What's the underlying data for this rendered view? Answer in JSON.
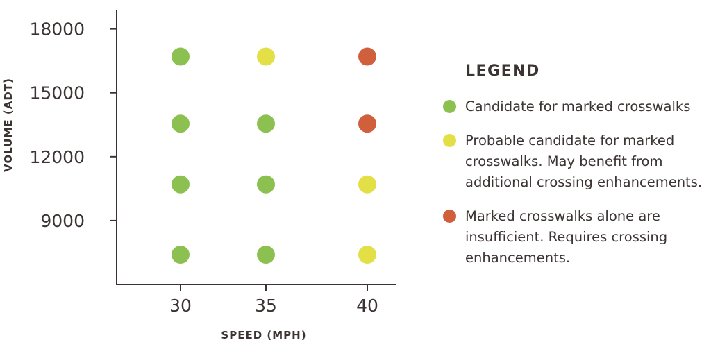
{
  "chart_data": {
    "type": "scatter",
    "xlabel": "SPEED (MPH)",
    "ylabel": "VOLUME (ADT)",
    "x_ticks": [
      "30",
      "35",
      "40"
    ],
    "y_ticks": [
      "18000",
      "15000",
      "12000",
      "9000"
    ],
    "y_tick_values": [
      18000,
      15000,
      12000,
      9000
    ],
    "ylim": [
      6000,
      18900
    ],
    "grid": false,
    "legend_position": "right",
    "colors": {
      "green": "#8cc152",
      "yellow": "#e3df47",
      "red": "#d05f3b"
    },
    "points": [
      {
        "x": 30,
        "y": 16700,
        "category": "green"
      },
      {
        "x": 35,
        "y": 16700,
        "category": "yellow"
      },
      {
        "x": 40,
        "y": 16700,
        "category": "red"
      },
      {
        "x": 30,
        "y": 13550,
        "category": "green"
      },
      {
        "x": 35,
        "y": 13550,
        "category": "green"
      },
      {
        "x": 40,
        "y": 13550,
        "category": "red"
      },
      {
        "x": 30,
        "y": 10700,
        "category": "green"
      },
      {
        "x": 35,
        "y": 10700,
        "category": "green"
      },
      {
        "x": 40,
        "y": 10700,
        "category": "yellow"
      },
      {
        "x": 30,
        "y": 7400,
        "category": "green"
      },
      {
        "x": 35,
        "y": 7400,
        "category": "green"
      },
      {
        "x": 40,
        "y": 7400,
        "category": "yellow"
      }
    ]
  },
  "legend": {
    "title": "LEGEND",
    "items": [
      {
        "color": "#8cc152",
        "lines": [
          "Candidate for marked crosswalks"
        ]
      },
      {
        "color": "#e3df47",
        "lines": [
          "Probable candidate for marked",
          "crosswalks. May benefit from",
          "additional crossing enhancements."
        ]
      },
      {
        "color": "#d05f3b",
        "lines": [
          "Marked crosswalks alone are",
          "insufficient. Requires crossing",
          "enhancements."
        ]
      }
    ]
  }
}
